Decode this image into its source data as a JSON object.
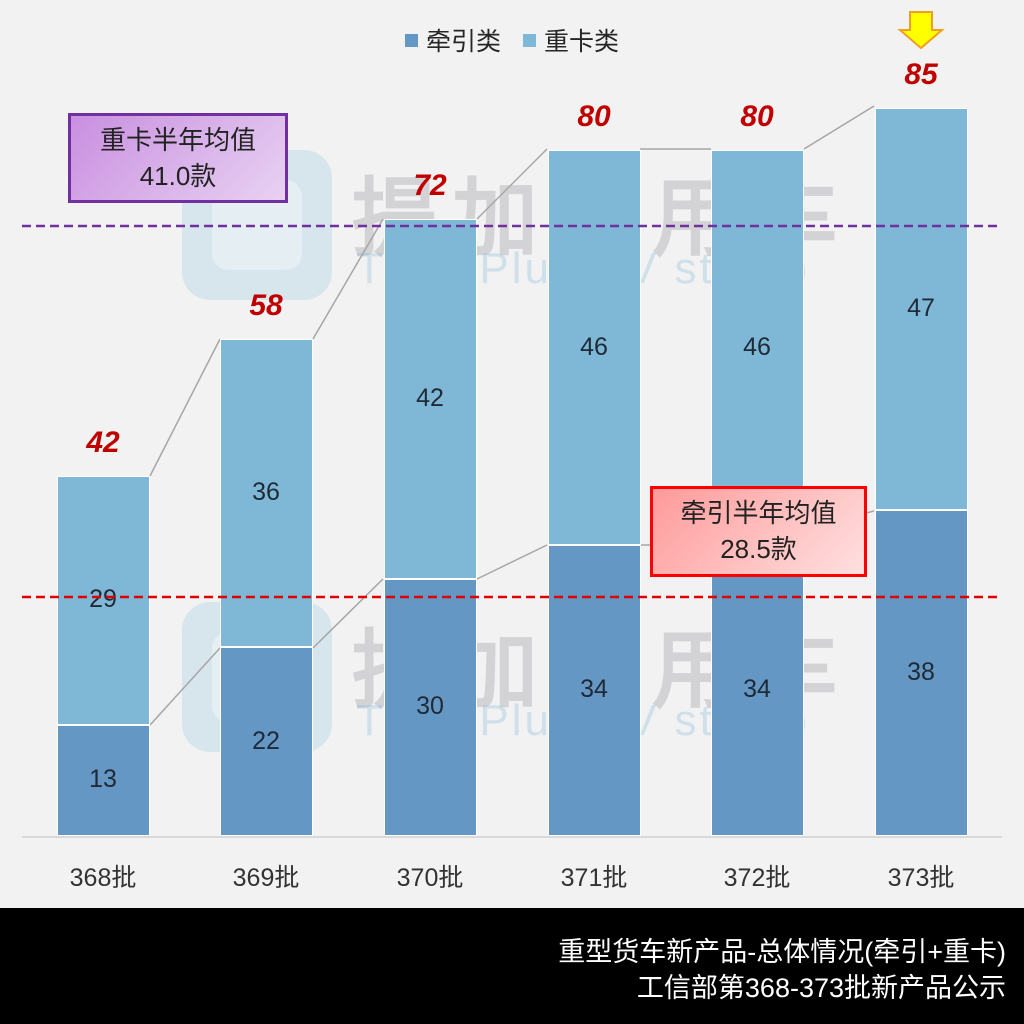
{
  "legend": [
    {
      "label": "牵引类",
      "color": "#6497c4"
    },
    {
      "label": "重卡类",
      "color": "#7fb7d6"
    }
  ],
  "watermark": {
    "cn": "提加商用车",
    "en": "TruckPlus CV studio"
  },
  "callouts": {
    "heavy_avg": {
      "title": "重卡半年均值",
      "value": "41.0款"
    },
    "tractor_avg": {
      "title": "牵引半年均值",
      "value": "28.5款"
    }
  },
  "highlight": {
    "icon": "down-arrow-icon",
    "target": "373批",
    "color": "#ffff00"
  },
  "footer": {
    "line1": "重型货车新产品-总体情况(牵引+重卡)",
    "line2": "工信部第368-373批新产品公示"
  },
  "chart_data": {
    "type": "bar",
    "stacked": true,
    "title": "重型货车新产品-总体情况(牵引+重卡)",
    "subtitle": "工信部第368-373批新产品公示",
    "categories": [
      "368批",
      "369批",
      "370批",
      "371批",
      "372批",
      "373批"
    ],
    "series": [
      {
        "name": "牵引类",
        "values": [
          13,
          22,
          30,
          34,
          34,
          38
        ],
        "color": "#6497c4"
      },
      {
        "name": "重卡类",
        "values": [
          29,
          36,
          42,
          46,
          46,
          47
        ],
        "color": "#7fb7d6"
      }
    ],
    "totals": [
      42,
      58,
      72,
      80,
      80,
      85
    ],
    "reference_lines": [
      {
        "name": "重卡半年均值",
        "value": 41.0,
        "unit": "款",
        "style": "dashed",
        "color": "#7030a0"
      },
      {
        "name": "牵引半年均值",
        "value": 28.5,
        "unit": "款",
        "style": "dashed",
        "color": "#e00000"
      }
    ],
    "legend_position": "top",
    "grid": false,
    "xlabel": "",
    "ylabel": "",
    "ylim": [
      0,
      95
    ]
  }
}
